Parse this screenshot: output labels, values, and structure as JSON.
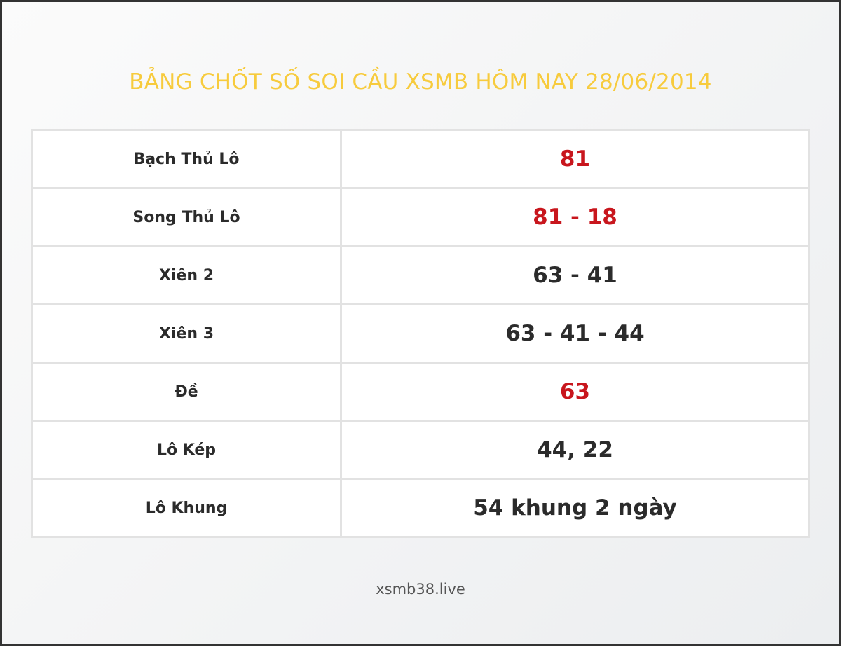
{
  "title": "BẢNG CHỐT SỐ SOI CẦU XSMB HÔM NAY 28/06/2014",
  "colors": {
    "title": "#f7cb3d",
    "highlight": "#c8161d",
    "text": "#2b2b2b"
  },
  "rows": [
    {
      "label": "Bạch Thủ Lô",
      "value": "81",
      "highlight": true
    },
    {
      "label": "Song Thủ Lô",
      "value": "81 - 18",
      "highlight": true
    },
    {
      "label": "Xiên 2",
      "value": "63 - 41",
      "highlight": false
    },
    {
      "label": "Xiên 3",
      "value": "63 - 41 - 44",
      "highlight": false
    },
    {
      "label": "Đề",
      "value": "63",
      "highlight": true
    },
    {
      "label": "Lô Kép",
      "value": "44, 22",
      "highlight": false
    },
    {
      "label": "Lô Khung",
      "value": "54 khung 2 ngày",
      "highlight": false
    }
  ],
  "footer": "xsmb38.live"
}
